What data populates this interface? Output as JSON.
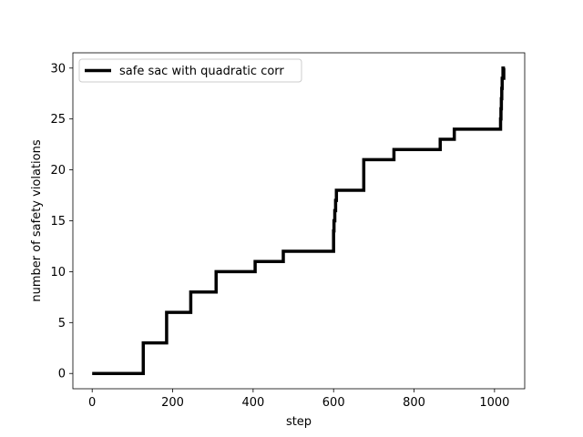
{
  "chart_data": {
    "type": "line",
    "title": "",
    "xlabel": "step",
    "ylabel": "number of safety violations",
    "xlim": [
      -48,
      1075
    ],
    "ylim": [
      -1.5,
      31.5
    ],
    "x_ticks": [
      0,
      200,
      400,
      600,
      800,
      1000
    ],
    "y_ticks": [
      0,
      5,
      10,
      15,
      20,
      25,
      30
    ],
    "grid": false,
    "legend_position": "upper left",
    "series": [
      {
        "name": "safe sac with quadratic corr",
        "color": "#000000",
        "step": true,
        "x": [
          0,
          127,
          185,
          245,
          308,
          405,
          475,
          600,
          601,
          603,
          605,
          607,
          675,
          750,
          865,
          900,
          1015,
          1016,
          1017,
          1018,
          1019,
          1020,
          1021,
          1022,
          1023
        ],
        "y": [
          0,
          3,
          6,
          8,
          10,
          11,
          12,
          14,
          15,
          16,
          17,
          18,
          21,
          22,
          23,
          24,
          25,
          26,
          27,
          28,
          29,
          29,
          30,
          29,
          30
        ]
      }
    ]
  }
}
